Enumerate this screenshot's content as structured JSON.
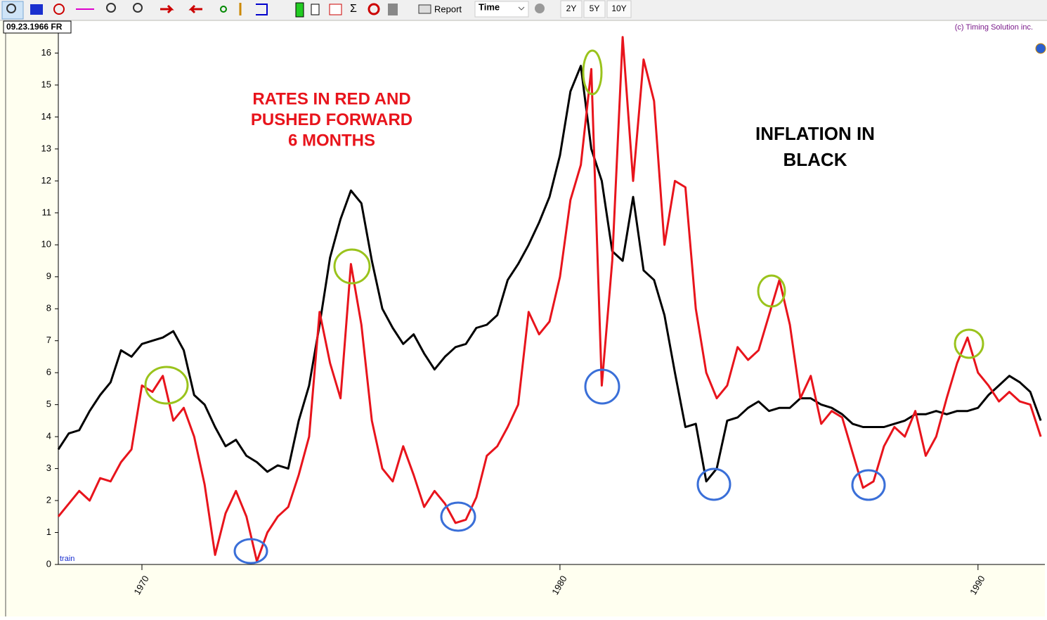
{
  "ui": {
    "report": "Report",
    "time": "Time",
    "ranges": [
      "2Y",
      "5Y",
      "10Y"
    ],
    "cursor_date": "09.23.1966 FR",
    "copyright": "(c) Timing Solution inc.",
    "train": "train"
  },
  "chart_data": {
    "type": "line",
    "annotations": [
      [
        "RATES IN RED AND",
        "PUSHED FORWARD",
        "6 MONTHS"
      ],
      [
        "INFLATION IN",
        "BLACK"
      ]
    ],
    "x": [
      1968,
      1968.25,
      1968.5,
      1968.75,
      1969,
      1969.25,
      1969.5,
      1969.75,
      1970,
      1970.25,
      1970.5,
      1970.75,
      1971,
      1971.25,
      1971.5,
      1971.75,
      1972,
      1972.25,
      1972.5,
      1972.75,
      1973,
      1973.25,
      1973.5,
      1973.75,
      1974,
      1974.25,
      1974.5,
      1974.75,
      1975,
      1975.25,
      1975.5,
      1975.75,
      1976,
      1976.25,
      1976.5,
      1976.75,
      1977,
      1977.25,
      1977.5,
      1977.75,
      1978,
      1978.25,
      1978.5,
      1978.75,
      1979,
      1979.25,
      1979.5,
      1979.75,
      1980,
      1980.25,
      1980.5,
      1980.75,
      1981,
      1981.25,
      1981.5,
      1981.75,
      1982,
      1982.25,
      1982.5,
      1982.75,
      1983,
      1983.25,
      1983.5,
      1983.75,
      1984,
      1984.25,
      1984.5,
      1984.75,
      1985,
      1985.25,
      1985.5,
      1985.75,
      1986,
      1986.25,
      1986.5,
      1986.75,
      1987,
      1987.25,
      1987.5,
      1987.75,
      1988,
      1988.25,
      1988.5,
      1988.75,
      1989,
      1989.25,
      1989.5,
      1989.75,
      1990,
      1990.25,
      1990.5,
      1990.75,
      1991,
      1991.25,
      1991.5
    ],
    "series": [
      {
        "color": "#000000",
        "values": [
          3.6,
          4.1,
          4.2,
          4.8,
          5.3,
          5.7,
          6.7,
          6.5,
          6.9,
          7.0,
          7.1,
          7.3,
          6.7,
          5.3,
          5.0,
          4.3,
          3.7,
          3.9,
          3.4,
          3.2,
          2.9,
          3.1,
          3.0,
          4.5,
          5.6,
          7.5,
          9.6,
          10.8,
          11.7,
          11.3,
          9.5,
          8.0,
          7.4,
          6.9,
          7.2,
          6.6,
          6.1,
          6.5,
          6.8,
          6.9,
          7.4,
          7.5,
          7.8,
          8.9,
          9.4,
          10.0,
          10.7,
          11.5,
          12.8,
          14.8,
          15.6,
          13.0,
          12.0,
          9.8,
          9.5,
          11.5,
          9.2,
          8.9,
          7.8,
          6.0,
          4.3,
          4.4,
          2.6,
          3.0,
          4.5,
          4.6,
          4.9,
          5.1,
          4.8,
          4.9,
          4.9,
          5.2,
          5.2,
          5.0,
          4.9,
          4.7,
          4.4,
          4.3,
          4.3,
          4.3,
          4.4,
          4.5,
          4.7,
          4.7,
          4.8,
          4.7,
          4.8,
          4.8,
          4.9,
          5.3,
          5.6,
          5.9,
          5.7,
          5.4,
          4.5
        ]
      },
      {
        "color": "#e8141c",
        "values": [
          1.5,
          1.9,
          2.3,
          2.0,
          2.7,
          2.6,
          3.2,
          3.6,
          5.6,
          5.4,
          5.9,
          4.5,
          4.9,
          4.0,
          2.5,
          0.3,
          1.6,
          2.3,
          1.5,
          0.1,
          1.0,
          1.5,
          1.8,
          2.8,
          4.0,
          7.9,
          6.3,
          5.2,
          9.4,
          7.5,
          4.5,
          3.0,
          2.6,
          3.7,
          2.8,
          1.8,
          2.3,
          1.9,
          1.3,
          1.4,
          2.1,
          3.4,
          3.7,
          4.3,
          5.0,
          7.9,
          7.2,
          7.6,
          9.0,
          11.4,
          12.5,
          15.5,
          5.6,
          9.5,
          16.5,
          12.0,
          15.8,
          14.5,
          10.0,
          12.0,
          11.8,
          8.0,
          6.0,
          5.2,
          5.6,
          6.8,
          6.4,
          6.7,
          7.8,
          8.9,
          7.5,
          5.2,
          5.9,
          4.4,
          4.8,
          4.6,
          3.5,
          2.4,
          2.6,
          3.7,
          4.3,
          4.0,
          4.8,
          3.4,
          4.0,
          5.2,
          6.3,
          7.1,
          6.0,
          5.6,
          5.1,
          5.4,
          5.1,
          5.0,
          4.0
        ]
      }
    ],
    "xlim": [
      1968,
      1991.6
    ],
    "xticks": [
      1970,
      1980,
      1990
    ],
    "ylim": [
      0,
      17
    ],
    "yticks": [
      0,
      1,
      2,
      3,
      4,
      5,
      6,
      7,
      8,
      9,
      10,
      11,
      12,
      13,
      14,
      15,
      16
    ]
  }
}
